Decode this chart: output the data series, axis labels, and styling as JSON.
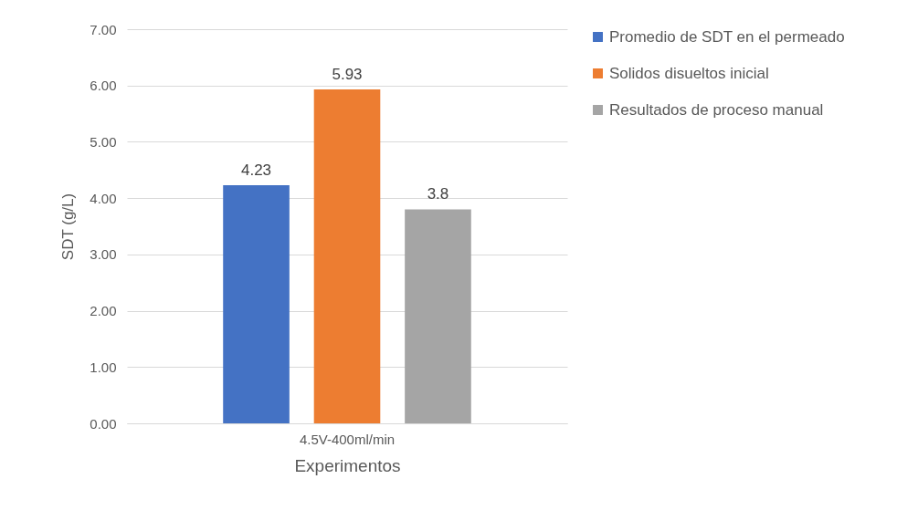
{
  "chart_data": {
    "type": "bar",
    "xlabel": "Experimentos",
    "ylabel": "SDT (g/L)",
    "categories": [
      "4.5V-400ml/min"
    ],
    "series": [
      {
        "name": "Promedio de SDT en el permeado",
        "color": "#4472c4",
        "values": [
          4.23
        ]
      },
      {
        "name": "Solidos disueltos inicial",
        "color": "#ed7d31",
        "values": [
          5.93
        ]
      },
      {
        "name": "Resultados de proceso manual",
        "color": "#a5a5a5",
        "values": [
          3.8
        ]
      }
    ],
    "ylim": [
      0,
      7
    ],
    "yticks": [
      {
        "value": 0,
        "label": "0.00"
      },
      {
        "value": 1,
        "label": "1.00"
      },
      {
        "value": 2,
        "label": "2.00"
      },
      {
        "value": 3,
        "label": "3.00"
      },
      {
        "value": 4,
        "label": "4.00"
      },
      {
        "value": 5,
        "label": "5.00"
      },
      {
        "value": 6,
        "label": "6.00"
      },
      {
        "value": 7,
        "label": "7.00"
      }
    ],
    "grid": "y",
    "legend": "right",
    "data_labels": true
  }
}
